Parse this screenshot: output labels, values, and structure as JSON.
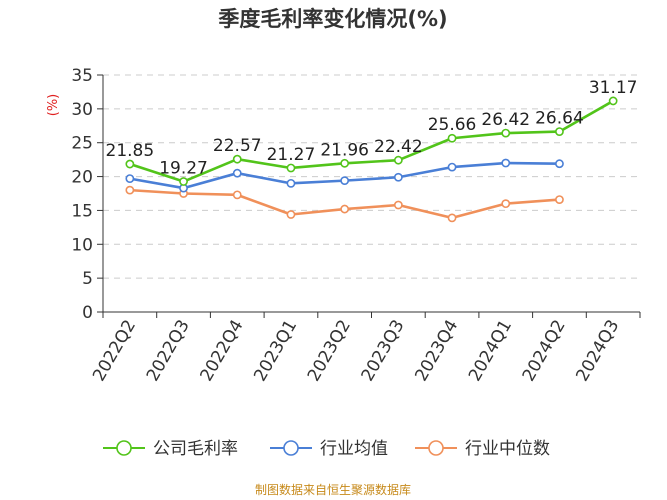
{
  "chart_data": {
    "type": "line",
    "title": "季度毛利率变化情况(%)",
    "ylabel": "(%)",
    "xlabel": "",
    "ylim": [
      0,
      35
    ],
    "yticks": [
      0,
      5,
      10,
      15,
      20,
      25,
      30,
      35
    ],
    "grid": "horizontal dashed",
    "legend_position": "bottom",
    "categories": [
      "2022Q2",
      "2022Q3",
      "2022Q4",
      "2023Q1",
      "2023Q2",
      "2023Q3",
      "2023Q4",
      "2024Q1",
      "2024Q2",
      "2024Q3"
    ],
    "series": [
      {
        "name": "公司毛利率",
        "color": "#52c41a",
        "values": [
          21.85,
          19.27,
          22.57,
          21.27,
          21.96,
          22.42,
          25.66,
          26.42,
          26.64,
          31.17
        ],
        "data_labels": [
          "21.85",
          "19.27",
          "22.57",
          "21.27",
          "21.96",
          "22.42",
          "25.66",
          "26.42",
          "26.64",
          "31.17"
        ]
      },
      {
        "name": "行业均值",
        "color": "#4a7fd6",
        "values": [
          19.7,
          18.3,
          20.5,
          19.0,
          19.4,
          19.9,
          21.4,
          22.0,
          21.9,
          null
        ]
      },
      {
        "name": "行业中位数",
        "color": "#f0905a",
        "values": [
          18.0,
          17.5,
          17.3,
          14.4,
          15.2,
          15.8,
          13.9,
          16.0,
          16.6,
          null
        ]
      }
    ],
    "source": "制图数据来自恒生聚源数据库"
  }
}
